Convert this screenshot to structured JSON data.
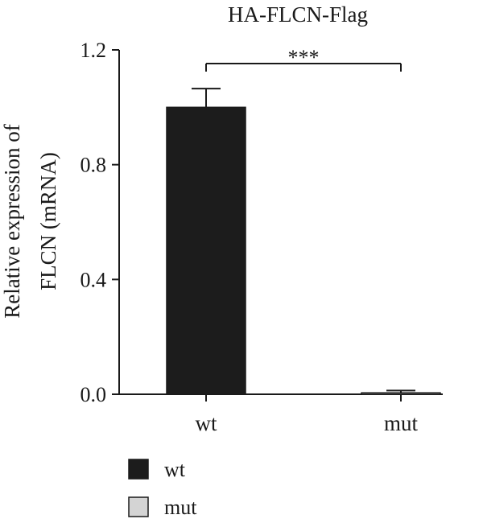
{
  "chart_data": {
    "type": "bar",
    "title": "HA-FLCN-Flag",
    "ylabel_lines": [
      "Relative expression of",
      "FLCN (mRNA)"
    ],
    "xlabel": "",
    "categories": [
      "wt",
      "mut"
    ],
    "values": [
      1.0,
      0.005
    ],
    "errors": [
      0.065,
      0.008
    ],
    "colors": [
      "#1c1c1c",
      "#d4d4d4"
    ],
    "ylim": [
      0,
      1.2
    ],
    "yticks": [
      "0.0",
      "0.4",
      "0.8",
      "1.2"
    ],
    "grid": false,
    "significance": {
      "from": "wt",
      "to": "mut",
      "label": "***"
    },
    "legend": {
      "placement": "bottom-left",
      "entries": [
        {
          "label": "wt",
          "color": "#1c1c1c"
        },
        {
          "label": "mut",
          "color": "#d4d4d4"
        }
      ]
    }
  }
}
